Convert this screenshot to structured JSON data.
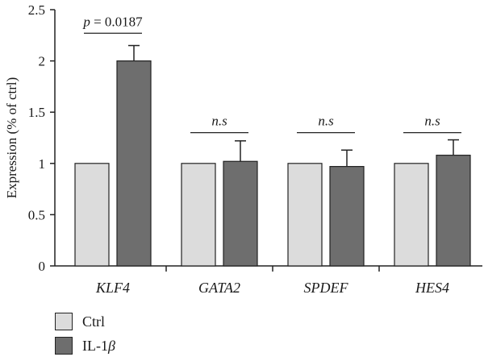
{
  "chart_data": {
    "type": "bar",
    "title": "",
    "xlabel": "",
    "ylabel": "Expression (% of ctrl)",
    "ylim": [
      0,
      2.5
    ],
    "yticks": [
      "0",
      "0.5",
      "1",
      "1.5",
      "2",
      "2.5"
    ],
    "categories": [
      "KLF4",
      "GATA2",
      "SPDEF",
      "HES4"
    ],
    "series": [
      {
        "name": "Ctrl",
        "color": "#dcdcdc",
        "values": [
          1,
          1,
          1,
          1
        ],
        "errors": [
          0,
          0,
          0,
          0
        ]
      },
      {
        "name": "IL-1β",
        "color": "#6e6e6e",
        "values": [
          2.0,
          1.02,
          0.97,
          1.08
        ],
        "errors": [
          0.15,
          0.2,
          0.16,
          0.15
        ]
      }
    ],
    "annotations": [
      {
        "category": "KLF4",
        "text_prefix": "p",
        "text_rest": " = 0.0187",
        "level": 2.27
      },
      {
        "category": "GATA2",
        "text": "n.s",
        "level": 1.3
      },
      {
        "category": "SPDEF",
        "text": "n.s",
        "level": 1.3
      },
      {
        "category": "HES4",
        "text": "n.s",
        "level": 1.3
      }
    ],
    "legend_position": "bottom-left",
    "grid": false
  },
  "legend": {
    "ctrl_label": "Ctrl",
    "il1_prefix": "IL-1",
    "il1_suffix": "β"
  }
}
